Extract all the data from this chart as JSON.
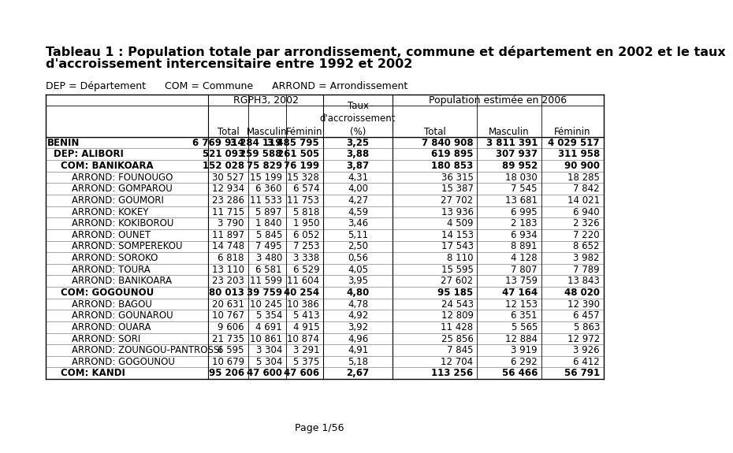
{
  "title_line1": "Tableau 1 : Population totale par arrondissement, commune et département en 2002 et le taux",
  "title_line2": "d'accroissement intercensitaire entre 1992 et 2002",
  "legend_text": "DEP = Département      COM = Commune      ARROND = Arrondissement",
  "rows": [
    {
      "name": "BENIN",
      "level": "benin",
      "t02": "6 769 914",
      "m02": "3 284 119",
      "f02": "3 485 795",
      "taux": "3,25",
      "t06": "7 840 908",
      "m06": "3 811 391",
      "f06": "4 029 517"
    },
    {
      "name": "DEP: ALIBORI",
      "level": "dep",
      "t02": "521 093",
      "m02": "259 588",
      "f02": "261 505",
      "taux": "3,88",
      "t06": "619 895",
      "m06": "307 937",
      "f06": "311 958"
    },
    {
      "name": "COM: BANIKOARA",
      "level": "com",
      "t02": "152 028",
      "m02": "75 829",
      "f02": "76 199",
      "taux": "3,87",
      "t06": "180 853",
      "m06": "89 952",
      "f06": "90 900"
    },
    {
      "name": "ARROND: FOUNOUGO",
      "level": "arrond",
      "t02": "30 527",
      "m02": "15 199",
      "f02": "15 328",
      "taux": "4,31",
      "t06": "36 315",
      "m06": "18 030",
      "f06": "18 285"
    },
    {
      "name": "ARROND: GOMPAROU",
      "level": "arrond",
      "t02": "12 934",
      "m02": "6 360",
      "f02": "6 574",
      "taux": "4,00",
      "t06": "15 387",
      "m06": "7 545",
      "f06": "7 842"
    },
    {
      "name": "ARROND: GOUMORI",
      "level": "arrond",
      "t02": "23 286",
      "m02": "11 533",
      "f02": "11 753",
      "taux": "4,27",
      "t06": "27 702",
      "m06": "13 681",
      "f06": "14 021"
    },
    {
      "name": "ARROND: KOKEY",
      "level": "arrond",
      "t02": "11 715",
      "m02": "5 897",
      "f02": "5 818",
      "taux": "4,59",
      "t06": "13 936",
      "m06": "6 995",
      "f06": "6 940"
    },
    {
      "name": "ARROND: KOKIBOROU",
      "level": "arrond",
      "t02": "3 790",
      "m02": "1 840",
      "f02": "1 950",
      "taux": "3,46",
      "t06": "4 509",
      "m06": "2 183",
      "f06": "2 326"
    },
    {
      "name": "ARROND: OUNET",
      "level": "arrond",
      "t02": "11 897",
      "m02": "5 845",
      "f02": "6 052",
      "taux": "5,11",
      "t06": "14 153",
      "m06": "6 934",
      "f06": "7 220"
    },
    {
      "name": "ARROND: SOMPEREKOU",
      "level": "arrond",
      "t02": "14 748",
      "m02": "7 495",
      "f02": "7 253",
      "taux": "2,50",
      "t06": "17 543",
      "m06": "8 891",
      "f06": "8 652"
    },
    {
      "name": "ARROND: SOROKO",
      "level": "arrond",
      "t02": "6 818",
      "m02": "3 480",
      "f02": "3 338",
      "taux": "0,56",
      "t06": "8 110",
      "m06": "4 128",
      "f06": "3 982"
    },
    {
      "name": "ARROND: TOURA",
      "level": "arrond",
      "t02": "13 110",
      "m02": "6 581",
      "f02": "6 529",
      "taux": "4,05",
      "t06": "15 595",
      "m06": "7 807",
      "f06": "7 789"
    },
    {
      "name": "ARROND: BANIKOARA",
      "level": "arrond",
      "t02": "23 203",
      "m02": "11 599",
      "f02": "11 604",
      "taux": "3,95",
      "t06": "27 602",
      "m06": "13 759",
      "f06": "13 843"
    },
    {
      "name": "COM: GOGOUNOU",
      "level": "com",
      "t02": "80 013",
      "m02": "39 759",
      "f02": "40 254",
      "taux": "4,80",
      "t06": "95 185",
      "m06": "47 164",
      "f06": "48 020"
    },
    {
      "name": "ARROND: BAGOU",
      "level": "arrond",
      "t02": "20 631",
      "m02": "10 245",
      "f02": "10 386",
      "taux": "4,78",
      "t06": "24 543",
      "m06": "12 153",
      "f06": "12 390"
    },
    {
      "name": "ARROND: GOUNAROU",
      "level": "arrond",
      "t02": "10 767",
      "m02": "5 354",
      "f02": "5 413",
      "taux": "4,92",
      "t06": "12 809",
      "m06": "6 351",
      "f06": "6 457"
    },
    {
      "name": "ARROND: OUARA",
      "level": "arrond",
      "t02": "9 606",
      "m02": "4 691",
      "f02": "4 915",
      "taux": "3,92",
      "t06": "11 428",
      "m06": "5 565",
      "f06": "5 863"
    },
    {
      "name": "ARROND: SORI",
      "level": "arrond",
      "t02": "21 735",
      "m02": "10 861",
      "f02": "10 874",
      "taux": "4,96",
      "t06": "25 856",
      "m06": "12 884",
      "f06": "12 972"
    },
    {
      "name": "ARROND: ZOUNGOU-PANTROSSI",
      "level": "arrond",
      "t02": "6 595",
      "m02": "3 304",
      "f02": "3 291",
      "taux": "4,91",
      "t06": "7 845",
      "m06": "3 919",
      "f06": "3 926"
    },
    {
      "name": "ARROND: GOGOUNOU",
      "level": "arrond",
      "t02": "10 679",
      "m02": "5 304",
      "f02": "5 375",
      "taux": "5,18",
      "t06": "12 704",
      "m06": "6 292",
      "f06": "6 412"
    },
    {
      "name": "COM: KANDI",
      "level": "com",
      "t02": "95 206",
      "m02": "47 600",
      "f02": "47 606",
      "taux": "2,67",
      "t06": "113 256",
      "m06": "56 466",
      "f06": "56 791"
    }
  ],
  "page_text": "Page 1/56",
  "bg_color": "#ffffff",
  "text_color": "#000000"
}
